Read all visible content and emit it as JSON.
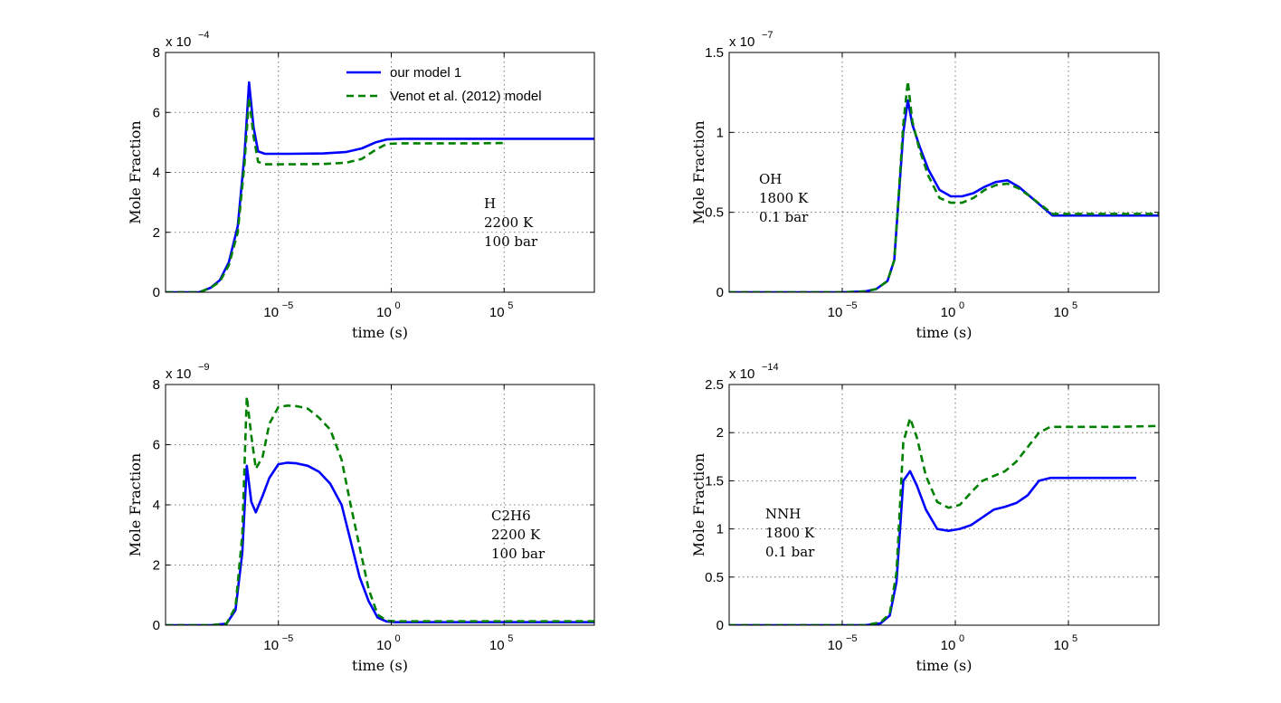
{
  "chart_data": [
    {
      "type": "line",
      "xscale": "log",
      "xlim_log10": [
        -10,
        9
      ],
      "x_ticks": [
        {
          "base": "10",
          "exp": "−5"
        },
        {
          "base": "10",
          "exp": "0"
        },
        {
          "base": "10",
          "exp": "5"
        }
      ],
      "x_tick_values_log10": [
        -5,
        0,
        5
      ],
      "y_multiplier": {
        "prefix": "x 10",
        "exp": "−4"
      },
      "ylim": [
        0,
        8
      ],
      "y_ticks": [
        "0",
        "2",
        "4",
        "6",
        "8"
      ],
      "y_tick_values": [
        0,
        2,
        4,
        6,
        8
      ],
      "xlabel": "time (s)",
      "ylabel": "Mole Fraction",
      "annotation": [
        "H",
        "2200 K",
        "100 bar"
      ],
      "legend": {
        "location": "top-right",
        "entries": [
          "our model 1",
          "Venot et al. (2012) model"
        ]
      },
      "series": [
        {
          "name": "our model 1",
          "color": "#0000ff",
          "style": "solid",
          "x_log10": [
            -10,
            -8.5,
            -8,
            -7.6,
            -7.2,
            -6.8,
            -6.5,
            -6.3,
            -6.1,
            -5.9,
            -5.6,
            -5.2,
            -4.5,
            -3,
            -2,
            -1.3,
            -0.7,
            -0.2,
            0.5,
            2,
            4,
            6,
            8,
            9
          ],
          "y": [
            0,
            0,
            0.15,
            0.4,
            1.0,
            2.2,
            4.6,
            7.0,
            5.5,
            4.7,
            4.62,
            4.62,
            4.62,
            4.63,
            4.68,
            4.8,
            5.0,
            5.1,
            5.12,
            5.12,
            5.12,
            5.12,
            5.12,
            5.12
          ]
        },
        {
          "name": "Venot et al. (2012) model",
          "color": "#008000",
          "style": "dashed",
          "x_log10": [
            -10,
            -8.5,
            -8,
            -7.6,
            -7.2,
            -6.8,
            -6.5,
            -6.3,
            -6.1,
            -5.9,
            -5.6,
            -5.2,
            -4.5,
            -3,
            -2,
            -1.3,
            -0.7,
            -0.2,
            0.5,
            2,
            4,
            5
          ],
          "y": [
            0,
            0,
            0.15,
            0.35,
            0.9,
            2.0,
            4.3,
            6.5,
            5.2,
            4.35,
            4.27,
            4.27,
            4.27,
            4.28,
            4.32,
            4.45,
            4.75,
            4.95,
            4.97,
            4.97,
            4.97,
            4.98
          ]
        }
      ]
    },
    {
      "type": "line",
      "xscale": "log",
      "xlim_log10": [
        -10,
        9
      ],
      "x_ticks": [
        {
          "base": "10",
          "exp": "−5"
        },
        {
          "base": "10",
          "exp": "0"
        },
        {
          "base": "10",
          "exp": "5"
        }
      ],
      "x_tick_values_log10": [
        -5,
        0,
        5
      ],
      "y_multiplier": {
        "prefix": "x 10",
        "exp": "−7"
      },
      "ylim": [
        0,
        1.5
      ],
      "y_ticks": [
        "0",
        "0.5",
        "1",
        "1.5"
      ],
      "y_tick_values": [
        0,
        0.5,
        1,
        1.5
      ],
      "xlabel": "time (s)",
      "ylabel": "Mole Fraction",
      "annotation": [
        "OH",
        "1800 K",
        "0.1 bar"
      ],
      "series": [
        {
          "name": "our model 1",
          "color": "#0000ff",
          "style": "solid",
          "x_log10": [
            -10,
            -5,
            -4,
            -3.5,
            -3,
            -2.7,
            -2.5,
            -2.3,
            -2.1,
            -1.9,
            -1.6,
            -1.2,
            -0.7,
            -0.2,
            0.3,
            0.8,
            1.3,
            1.8,
            2.3,
            2.8,
            3.3,
            4.3,
            6,
            8,
            9
          ],
          "y": [
            0,
            0,
            0.005,
            0.02,
            0.07,
            0.2,
            0.6,
            1.0,
            1.2,
            1.05,
            0.92,
            0.77,
            0.64,
            0.6,
            0.6,
            0.62,
            0.66,
            0.69,
            0.7,
            0.66,
            0.6,
            0.48,
            0.48,
            0.48,
            0.48
          ]
        },
        {
          "name": "Venot et al. (2012) model",
          "color": "#008000",
          "style": "dashed",
          "x_log10": [
            -10,
            -5,
            -4,
            -3.5,
            -3,
            -2.7,
            -2.5,
            -2.3,
            -2.1,
            -1.9,
            -1.6,
            -1.2,
            -0.7,
            -0.2,
            0.3,
            0.8,
            1.3,
            1.8,
            2.3,
            2.8,
            3.3,
            4.3,
            6,
            8,
            9
          ],
          "y": [
            0,
            0,
            0.005,
            0.02,
            0.07,
            0.2,
            0.62,
            1.05,
            1.32,
            1.07,
            0.9,
            0.73,
            0.59,
            0.56,
            0.56,
            0.59,
            0.64,
            0.67,
            0.68,
            0.65,
            0.6,
            0.49,
            0.49,
            0.49,
            0.49
          ]
        }
      ]
    },
    {
      "type": "line",
      "xscale": "log",
      "xlim_log10": [
        -10,
        9
      ],
      "x_ticks": [
        {
          "base": "10",
          "exp": "−5"
        },
        {
          "base": "10",
          "exp": "0"
        },
        {
          "base": "10",
          "exp": "5"
        }
      ],
      "x_tick_values_log10": [
        -5,
        0,
        5
      ],
      "y_multiplier": {
        "prefix": "x 10",
        "exp": "−9"
      },
      "ylim": [
        0,
        8
      ],
      "y_ticks": [
        "0",
        "2",
        "4",
        "6",
        "8"
      ],
      "y_tick_values": [
        0,
        2,
        4,
        6,
        8
      ],
      "xlabel": "time (s)",
      "ylabel": "Mole Fraction",
      "annotation": [
        "C2H6",
        "2200 K",
        "100 bar"
      ],
      "series": [
        {
          "name": "our model 1",
          "color": "#0000ff",
          "style": "solid",
          "x_log10": [
            -10,
            -8,
            -7.3,
            -6.9,
            -6.6,
            -6.4,
            -6.2,
            -6.0,
            -5.7,
            -5.4,
            -5.0,
            -4.6,
            -4.2,
            -3.7,
            -3.2,
            -2.7,
            -2.2,
            -1.8,
            -1.4,
            -1.0,
            -0.6,
            -0.2,
            0.2,
            1,
            3,
            5,
            7,
            9
          ],
          "y": [
            0,
            0,
            0.05,
            0.5,
            2.4,
            5.3,
            4.1,
            3.75,
            4.3,
            4.9,
            5.35,
            5.4,
            5.38,
            5.3,
            5.1,
            4.7,
            4.0,
            2.8,
            1.6,
            0.8,
            0.25,
            0.12,
            0.1,
            0.1,
            0.1,
            0.1,
            0.1,
            0.1
          ]
        },
        {
          "name": "Venot et al. (2012) model",
          "color": "#008000",
          "style": "dashed",
          "x_log10": [
            -10,
            -8,
            -7.3,
            -6.9,
            -6.6,
            -6.4,
            -6.2,
            -6.0,
            -5.7,
            -5.4,
            -5.0,
            -4.6,
            -4.2,
            -3.7,
            -3.2,
            -2.7,
            -2.2,
            -1.8,
            -1.4,
            -1.0,
            -0.6,
            -0.2,
            0.2,
            1,
            3,
            5,
            7,
            9
          ],
          "y": [
            0,
            0,
            0.05,
            0.6,
            3.0,
            7.6,
            6.3,
            5.2,
            5.6,
            6.7,
            7.25,
            7.3,
            7.28,
            7.2,
            6.9,
            6.5,
            5.5,
            4.0,
            2.6,
            1.2,
            0.35,
            0.15,
            0.13,
            0.13,
            0.13,
            0.13,
            0.13,
            0.13
          ]
        }
      ]
    },
    {
      "type": "line",
      "xscale": "log",
      "xlim_log10": [
        -10,
        9
      ],
      "x_ticks": [
        {
          "base": "10",
          "exp": "−5"
        },
        {
          "base": "10",
          "exp": "0"
        },
        {
          "base": "10",
          "exp": "5"
        }
      ],
      "x_tick_values_log10": [
        -5,
        0,
        5
      ],
      "y_multiplier": {
        "prefix": "x 10",
        "exp": "−14"
      },
      "ylim": [
        0,
        2.5
      ],
      "y_ticks": [
        "0",
        "0.5",
        "1",
        "1.5",
        "2",
        "2.5"
      ],
      "y_tick_values": [
        0,
        0.5,
        1,
        1.5,
        2,
        2.5
      ],
      "xlabel": "time (s)",
      "ylabel": "Mole Fraction",
      "annotation": [
        "NNH",
        "1800 K",
        "0.1 bar"
      ],
      "series": [
        {
          "name": "our model 1",
          "color": "#0000ff",
          "style": "solid",
          "x_log10": [
            -10,
            -4,
            -3.3,
            -2.9,
            -2.6,
            -2.3,
            -2.0,
            -1.7,
            -1.3,
            -0.8,
            -0.3,
            0.2,
            0.7,
            1.2,
            1.7,
            2.2,
            2.7,
            3.2,
            3.7,
            4.2,
            5,
            7,
            8
          ],
          "y": [
            0,
            0,
            0.02,
            0.1,
            0.45,
            1.5,
            1.6,
            1.45,
            1.2,
            1.0,
            0.98,
            1.0,
            1.04,
            1.12,
            1.2,
            1.23,
            1.27,
            1.35,
            1.5,
            1.53,
            1.53,
            1.53,
            1.53
          ]
        },
        {
          "name": "Venot et al. (2012) model",
          "color": "#008000",
          "style": "dashed",
          "x_log10": [
            -10,
            -4,
            -3.3,
            -2.9,
            -2.6,
            -2.3,
            -2.0,
            -1.7,
            -1.3,
            -0.8,
            -0.3,
            0.2,
            0.7,
            1.2,
            1.7,
            2.2,
            2.7,
            3.2,
            3.7,
            4.2,
            5,
            7,
            9
          ],
          "y": [
            0,
            0,
            0.03,
            0.12,
            0.55,
            1.9,
            2.15,
            1.95,
            1.55,
            1.28,
            1.22,
            1.25,
            1.38,
            1.5,
            1.55,
            1.6,
            1.7,
            1.85,
            2.0,
            2.06,
            2.06,
            2.06,
            2.07
          ]
        }
      ]
    }
  ]
}
